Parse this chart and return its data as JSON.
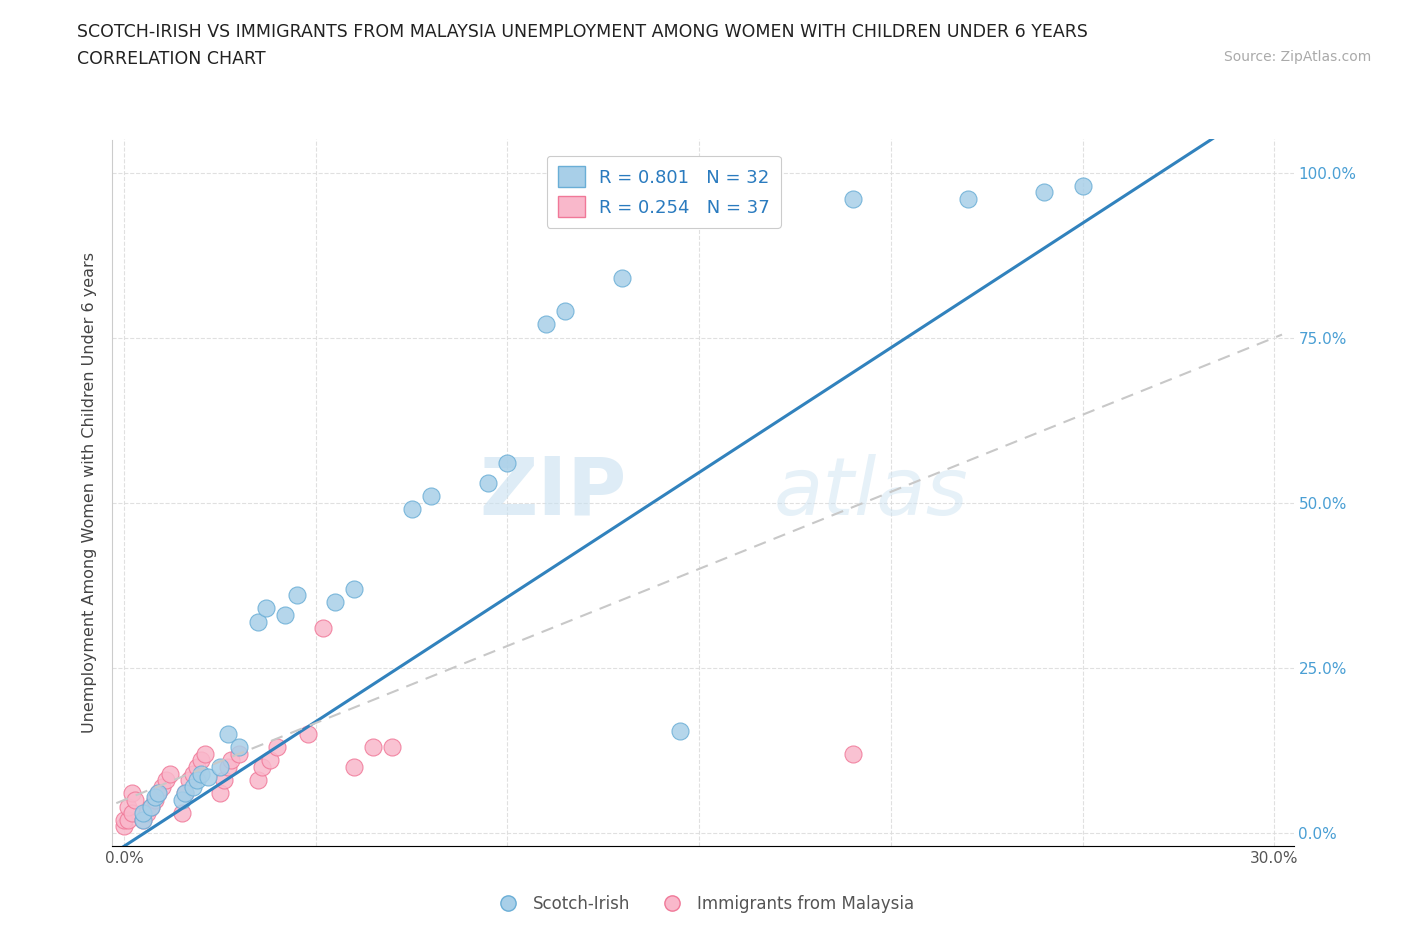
{
  "title_line1": "SCOTCH-IRISH VS IMMIGRANTS FROM MALAYSIA UNEMPLOYMENT AMONG WOMEN WITH CHILDREN UNDER 6 YEARS",
  "title_line2": "CORRELATION CHART",
  "source_text": "Source: ZipAtlas.com",
  "ylabel": "Unemployment Among Women with Children Under 6 years",
  "xlim": [
    0.0,
    0.3
  ],
  "ylim": [
    0.0,
    1.05
  ],
  "x_ticks": [
    0.0,
    0.05,
    0.1,
    0.15,
    0.2,
    0.25,
    0.3
  ],
  "x_tick_labels": [
    "0.0%",
    "",
    "",
    "",
    "",
    "",
    "30.0%"
  ],
  "y_ticks": [
    0.0,
    0.25,
    0.5,
    0.75,
    1.0
  ],
  "y_tick_labels": [
    "0.0%",
    "25.0%",
    "50.0%",
    "75.0%",
    "100.0%"
  ],
  "scotch_irish_color": "#a8cfe8",
  "malaysia_color": "#f9b8cb",
  "scotch_irish_edge": "#6aaed6",
  "malaysia_edge": "#f07898",
  "regression_blue_color": "#3182bd",
  "regression_gray_color": "#c8c8c8",
  "legend_R1": "0.801",
  "legend_N1": "32",
  "legend_R2": "0.254",
  "legend_N2": "37",
  "watermark_zip": "ZIP",
  "watermark_atlas": "atlas",
  "scotch_irish_x": [
    0.005,
    0.005,
    0.007,
    0.008,
    0.009,
    0.015,
    0.016,
    0.018,
    0.019,
    0.02,
    0.022,
    0.025,
    0.027,
    0.03,
    0.035,
    0.037,
    0.042,
    0.045,
    0.055,
    0.06,
    0.075,
    0.08,
    0.095,
    0.1,
    0.11,
    0.115,
    0.13,
    0.145,
    0.19,
    0.22,
    0.24,
    0.25
  ],
  "scotch_irish_y": [
    0.02,
    0.03,
    0.04,
    0.055,
    0.06,
    0.05,
    0.06,
    0.07,
    0.08,
    0.09,
    0.085,
    0.1,
    0.15,
    0.13,
    0.32,
    0.34,
    0.33,
    0.36,
    0.35,
    0.37,
    0.49,
    0.51,
    0.53,
    0.56,
    0.77,
    0.79,
    0.84,
    0.155,
    0.96,
    0.96,
    0.97,
    0.98
  ],
  "malaysia_x": [
    0.0,
    0.0,
    0.001,
    0.001,
    0.002,
    0.002,
    0.003,
    0.005,
    0.006,
    0.007,
    0.008,
    0.009,
    0.01,
    0.011,
    0.012,
    0.015,
    0.016,
    0.017,
    0.018,
    0.019,
    0.02,
    0.021,
    0.025,
    0.026,
    0.027,
    0.028,
    0.03,
    0.035,
    0.036,
    0.038,
    0.04,
    0.048,
    0.052,
    0.06,
    0.065,
    0.07,
    0.19
  ],
  "malaysia_y": [
    0.01,
    0.02,
    0.02,
    0.04,
    0.03,
    0.06,
    0.05,
    0.02,
    0.03,
    0.04,
    0.05,
    0.06,
    0.07,
    0.08,
    0.09,
    0.03,
    0.06,
    0.08,
    0.09,
    0.1,
    0.11,
    0.12,
    0.06,
    0.08,
    0.1,
    0.11,
    0.12,
    0.08,
    0.1,
    0.11,
    0.13,
    0.15,
    0.31,
    0.1,
    0.13,
    0.13,
    0.12
  ]
}
